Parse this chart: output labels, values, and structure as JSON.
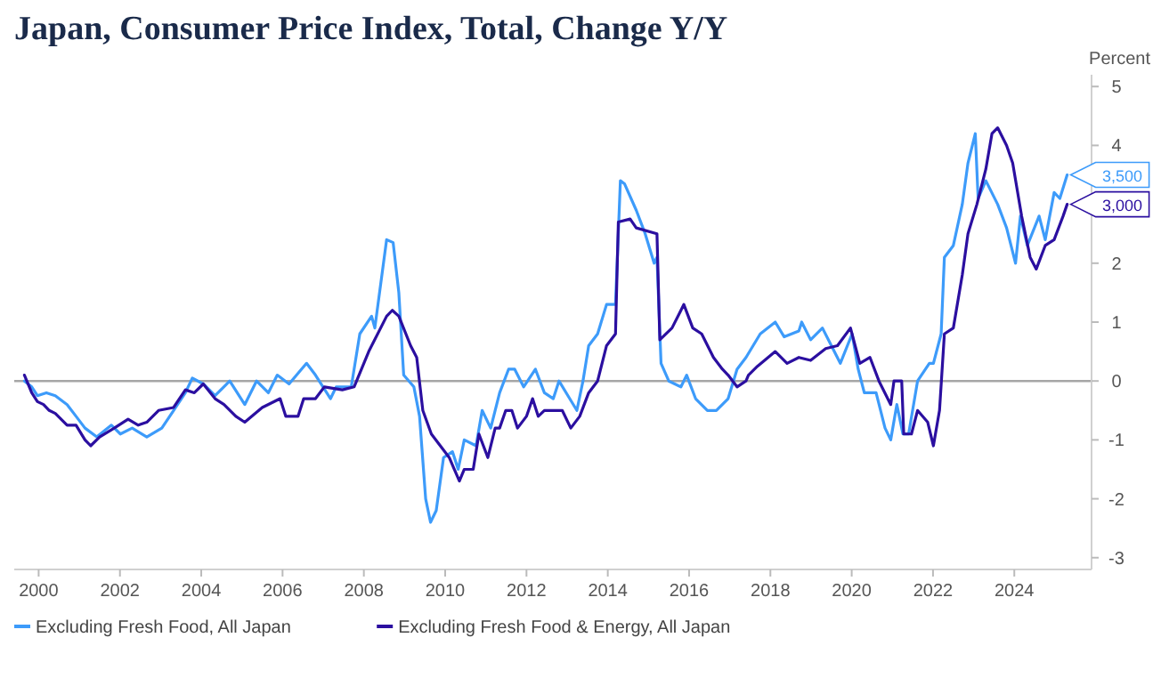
{
  "chart_data": {
    "type": "line",
    "title": "Japan, Consumer Price Index, Total, Change Y/Y",
    "ylabel": "Percent",
    "xlim": [
      1999.4,
      2025.9
    ],
    "ylim": [
      -3.2,
      5.2
    ],
    "xticks": [
      2000,
      2002,
      2004,
      2006,
      2008,
      2010,
      2012,
      2014,
      2016,
      2018,
      2020,
      2022,
      2024
    ],
    "yticks": [
      -3,
      -2,
      -1,
      0,
      1,
      2,
      {
        "value": 3,
        "label": null
      },
      4,
      5
    ],
    "annotations": [
      {
        "text": "3,500",
        "x": 2025.3,
        "y": 3.5
      },
      {
        "text": "3,000",
        "x": 2025.3,
        "y": 3
      }
    ],
    "legend": "bottom",
    "grid": false,
    "marker": "none",
    "line_style": "solid",
    "ref_lines": [
      {
        "axis": "y",
        "value": 0,
        "color": "#a6a6a6"
      }
    ],
    "series": [
      {
        "name": "Excluding Fresh Food, All Japan",
        "color": "#3d9bfa",
        "x": [
          1999.65,
          1999.83,
          1999.97,
          2000.19,
          2000.41,
          2000.7,
          2000.92,
          2001.14,
          2001.43,
          2001.79,
          2002.01,
          2002.3,
          2002.66,
          2003.03,
          2003.32,
          2003.61,
          2003.78,
          2004.05,
          2004.34,
          2004.7,
          2005.07,
          2005.36,
          2005.65,
          2005.87,
          2006.16,
          2006.59,
          2006.81,
          2007.18,
          2007.32,
          2007.69,
          2007.9,
          2008.19,
          2008.27,
          2008.56,
          2008.72,
          2008.86,
          2008.98,
          2009.23,
          2009.37,
          2009.52,
          2009.64,
          2009.78,
          2009.96,
          2010.18,
          2010.32,
          2010.47,
          2010.76,
          2010.91,
          2011.12,
          2011.34,
          2011.56,
          2011.71,
          2011.93,
          2012.22,
          2012.44,
          2012.66,
          2012.8,
          2013.02,
          2013.24,
          2013.39,
          2013.53,
          2013.75,
          2013.97,
          2014.19,
          2014.31,
          2014.41,
          2014.7,
          2014.92,
          2015.14,
          2015.21,
          2015.31,
          2015.5,
          2015.8,
          2015.94,
          2016.16,
          2016.45,
          2016.67,
          2016.96,
          2017.18,
          2017.4,
          2017.75,
          2018.12,
          2018.34,
          2018.7,
          2018.77,
          2018.99,
          2019.28,
          2019.5,
          2019.72,
          2020.01,
          2020.16,
          2020.31,
          2020.6,
          2020.82,
          2020.96,
          2021.11,
          2021.26,
          2021.4,
          2021.62,
          2021.91,
          2022.01,
          2022.2,
          2022.28,
          2022.5,
          2022.72,
          2022.86,
          2023.04,
          2023.11,
          2023.3,
          2023.59,
          2023.81,
          2024.03,
          2024.15,
          2024.32,
          2024.61,
          2024.76,
          2024.98,
          2025.12,
          2025.3
        ],
        "values": [
          0,
          -0.1,
          -0.25,
          -0.2,
          -0.25,
          -0.4,
          -0.6,
          -0.8,
          -0.95,
          -0.75,
          -0.9,
          -0.8,
          -0.95,
          -0.8,
          -0.5,
          -0.2,
          0.05,
          -0.05,
          -0.25,
          0,
          -0.4,
          0,
          -0.2,
          0.1,
          -0.05,
          0.3,
          0.1,
          -0.3,
          -0.1,
          -0.1,
          0.8,
          1.1,
          0.9,
          2.4,
          2.35,
          1.5,
          0.1,
          -0.1,
          -0.6,
          -2,
          -2.4,
          -2.2,
          -1.3,
          -1.2,
          -1.5,
          -1,
          -1.1,
          -0.5,
          -0.8,
          -0.2,
          0.2,
          0.2,
          -0.1,
          0.2,
          -0.2,
          -0.3,
          0,
          -0.25,
          -0.5,
          0,
          0.6,
          0.8,
          1.3,
          1.3,
          3.4,
          3.35,
          2.9,
          2.5,
          2,
          2.1,
          0.3,
          0,
          -0.1,
          0.1,
          -0.3,
          -0.5,
          -0.5,
          -0.3,
          0.2,
          0.4,
          0.8,
          1,
          0.75,
          0.85,
          1,
          0.7,
          0.9,
          0.6,
          0.3,
          0.8,
          0.2,
          -0.2,
          -0.2,
          -0.8,
          -1,
          -0.4,
          -0.9,
          -0.9,
          0,
          0.3,
          0.3,
          0.8,
          2.1,
          2.3,
          3,
          3.7,
          4.2,
          3.1,
          3.4,
          3,
          2.6,
          2,
          2.8,
          2.3,
          2.8,
          2.4,
          3.2,
          3.1,
          3.5
        ]
      },
      {
        "name": "Excluding Fresh Food & Energy, All Japan",
        "color": "#2b0fa0",
        "x": [
          1999.65,
          1999.83,
          1999.97,
          2000.12,
          2000.26,
          2000.41,
          2000.7,
          2000.92,
          2001.14,
          2001.28,
          2001.5,
          2001.86,
          2002.2,
          2002.45,
          2002.66,
          2002.95,
          2003.32,
          2003.61,
          2003.83,
          2004.05,
          2004.34,
          2004.56,
          2004.85,
          2005.07,
          2005.5,
          2005.94,
          2006.08,
          2006.38,
          2006.52,
          2006.81,
          2007.03,
          2007.47,
          2007.76,
          2008.12,
          2008.56,
          2008.7,
          2008.86,
          2009.15,
          2009.3,
          2009.45,
          2009.66,
          2009.88,
          2010.1,
          2010.35,
          2010.47,
          2010.69,
          2010.83,
          2011.05,
          2011.23,
          2011.34,
          2011.49,
          2011.64,
          2011.78,
          2012,
          2012.15,
          2012.29,
          2012.44,
          2012.66,
          2012.88,
          2013.09,
          2013.31,
          2013.53,
          2013.75,
          2013.97,
          2014.19,
          2014.26,
          2014.55,
          2014.7,
          2015.21,
          2015.28,
          2015.58,
          2015.8,
          2015.87,
          2016.09,
          2016.31,
          2016.6,
          2016.82,
          2016.96,
          2017.18,
          2017.4,
          2017.46,
          2017.68,
          2018.12,
          2018.41,
          2018.7,
          2018.99,
          2019.36,
          2019.65,
          2019.97,
          2020.2,
          2020.45,
          2020.67,
          2020.96,
          2021.04,
          2021.23,
          2021.28,
          2021.47,
          2021.62,
          2021.87,
          2022.01,
          2022.16,
          2022.28,
          2022.5,
          2022.72,
          2022.86,
          2023.08,
          2023.3,
          2023.45,
          2023.59,
          2023.81,
          2023.96,
          2024.18,
          2024.39,
          2024.54,
          2024.76,
          2024.98,
          2025.2,
          2025.3
        ],
        "values": [
          0.1,
          -0.2,
          -0.35,
          -0.4,
          -0.5,
          -0.55,
          -0.75,
          -0.75,
          -1,
          -1.1,
          -0.95,
          -0.8,
          -0.65,
          -0.75,
          -0.7,
          -0.5,
          -0.45,
          -0.15,
          -0.2,
          -0.05,
          -0.3,
          -0.4,
          -0.6,
          -0.7,
          -0.45,
          -0.3,
          -0.6,
          -0.6,
          -0.3,
          -0.3,
          -0.1,
          -0.15,
          -0.1,
          0.5,
          1.1,
          1.2,
          1.1,
          0.6,
          0.4,
          -0.5,
          -0.9,
          -1.1,
          -1.3,
          -1.7,
          -1.5,
          -1.5,
          -0.9,
          -1.3,
          -0.8,
          -0.8,
          -0.5,
          -0.5,
          -0.8,
          -0.6,
          -0.3,
          -0.6,
          -0.5,
          -0.5,
          -0.5,
          -0.8,
          -0.6,
          -0.2,
          0,
          0.6,
          0.8,
          2.7,
          2.75,
          2.6,
          2.5,
          0.7,
          0.9,
          1.2,
          1.3,
          0.9,
          0.8,
          0.4,
          0.2,
          0.1,
          -0.1,
          0,
          0.1,
          0.25,
          0.5,
          0.3,
          0.4,
          0.35,
          0.55,
          0.6,
          0.9,
          0.3,
          0.4,
          0,
          -0.4,
          0,
          0,
          -0.9,
          -0.9,
          -0.5,
          -0.7,
          -1.1,
          -0.5,
          0.8,
          0.9,
          1.8,
          2.5,
          3,
          3.6,
          4.2,
          4.3,
          4,
          3.7,
          2.8,
          2.1,
          1.9,
          2.3,
          2.4,
          2.8,
          3
        ]
      }
    ]
  }
}
